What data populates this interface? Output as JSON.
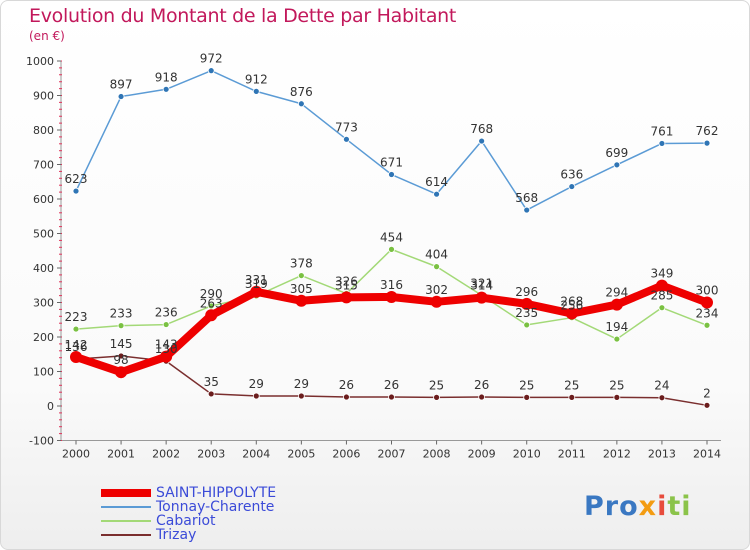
{
  "title": "Evolution du Montant de la Dette par Habitant",
  "subtitle": "(en €)",
  "logo": {
    "p1": "Pro",
    "p2": "x",
    "p3": "i",
    "p4": "ti"
  },
  "colors": {
    "title": "#c2185b",
    "legend_text": "#3b4bd8",
    "axis_text": "#333333",
    "tick_red": "#e0335a"
  },
  "chart_data": {
    "type": "line",
    "title": "Evolution du Montant de la Dette par Habitant",
    "subtitle": "(en €)",
    "x": [
      "2000",
      "2001",
      "2002",
      "2003",
      "2004",
      "2005",
      "2006",
      "2007",
      "2008",
      "2009",
      "2010",
      "2011",
      "2012",
      "2013",
      "2014"
    ],
    "ylim": [
      -100,
      1000
    ],
    "yticks": [
      -100,
      0,
      100,
      200,
      300,
      400,
      500,
      600,
      700,
      800,
      900,
      1000
    ],
    "grid": false,
    "legend_position": "bottom-left",
    "series": [
      {
        "name": "SAINT-HIPPOLYTE",
        "color": "#ee0000",
        "marker_color": "#ee0000",
        "width": 8,
        "values": [
          142,
          98,
          143,
          263,
          331,
          305,
          315,
          316,
          302,
          314,
          296,
          268,
          294,
          349,
          300
        ],
        "labels": [
          "142",
          "98",
          "143",
          "263",
          "331",
          "305",
          "315",
          "316",
          "302",
          "314",
          "296",
          "268",
          "294",
          "349",
          "300"
        ]
      },
      {
        "name": "Tonnay-Charente",
        "color": "#5b9bd5",
        "marker_color": "#2f75b5",
        "width": 1.5,
        "values": [
          623,
          897,
          918,
          972,
          912,
          876,
          773,
          671,
          614,
          768,
          568,
          636,
          699,
          761,
          762
        ],
        "labels": [
          "623",
          "897",
          "918",
          "972",
          "912",
          "876",
          "773",
          "671",
          "614",
          "768",
          "568",
          "636",
          "699",
          "761",
          "762"
        ]
      },
      {
        "name": "Cabariot",
        "color": "#a3d977",
        "marker_color": "#7ac142",
        "width": 1.5,
        "values": [
          223,
          233,
          236,
          290,
          319,
          378,
          326,
          454,
          404,
          321,
          235,
          256,
          194,
          285,
          234
        ],
        "labels": [
          "223",
          "233",
          "236",
          "290",
          "319",
          "378",
          "326",
          "454",
          "404",
          "321",
          "235",
          "256",
          "194",
          "285",
          "234"
        ]
      },
      {
        "name": "Trizay",
        "color": "#7a2e2e",
        "marker_color": "#6b1d1d",
        "width": 1.5,
        "values": [
          136,
          145,
          130,
          35,
          29,
          29,
          26,
          26,
          25,
          26,
          25,
          25,
          25,
          24,
          2
        ],
        "labels": [
          "136",
          "145",
          "130",
          "35",
          "29",
          "29",
          "26",
          "26",
          "25",
          "26",
          "25",
          "25",
          "25",
          "24",
          "2"
        ]
      }
    ]
  }
}
